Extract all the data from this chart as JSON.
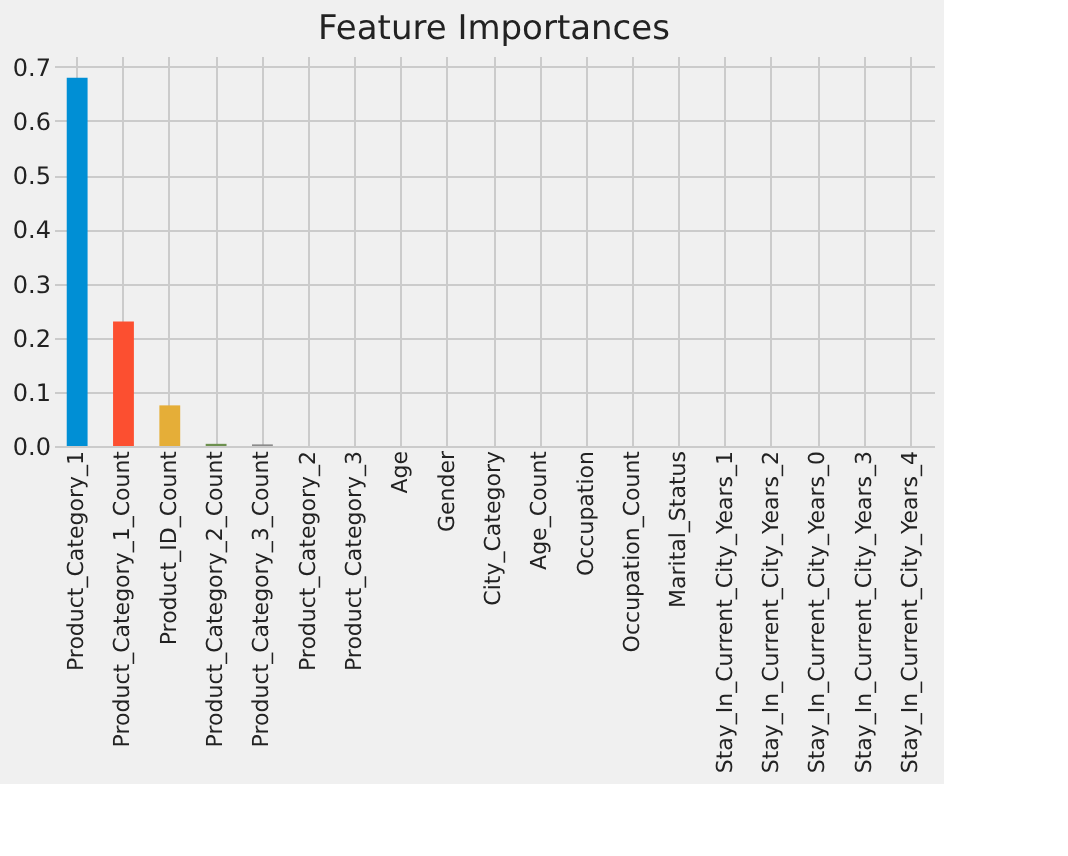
{
  "chart_data": {
    "type": "bar",
    "title": "Feature Importances",
    "categories": [
      "Product_Category_1",
      "Product_Category_1_Count",
      "Product_ID_Count",
      "Product_Category_2_Count",
      "Product_Category_3_Count",
      "Product_Category_2",
      "Product_Category_3",
      "Age",
      "Gender",
      "City_Category",
      "Age_Count",
      "Occupation",
      "Occupation_Count",
      "Marital_Status",
      "Stay_In_Current_City_Years_1",
      "Stay_In_Current_City_Years_2",
      "Stay_In_Current_City_Years_0",
      "Stay_In_Current_City_Years_3",
      "Stay_In_Current_City_Years_4"
    ],
    "values": [
      0.68,
      0.23,
      0.075,
      0.004,
      0.003,
      0,
      0,
      0,
      0,
      0,
      0,
      0,
      0,
      0,
      0,
      0,
      0,
      0,
      0
    ],
    "colors": [
      "#008fd5",
      "#fc4f30",
      "#e5ae38",
      "#6d904f",
      "#8b8b8b",
      "#810f7c",
      "#008fd5",
      "#fc4f30",
      "#e5ae38",
      "#6d904f",
      "#8b8b8b",
      "#810f7c",
      "#008fd5",
      "#fc4f30",
      "#e5ae38",
      "#6d904f",
      "#8b8b8b",
      "#810f7c",
      "#008fd5"
    ],
    "ylim": [
      0,
      0.72
    ],
    "yticks": [
      {
        "value": 0,
        "label": "0.0"
      },
      0.1,
      0.2,
      0.3,
      0.4,
      0.5,
      0.6,
      0.7
    ],
    "grid": true
  }
}
